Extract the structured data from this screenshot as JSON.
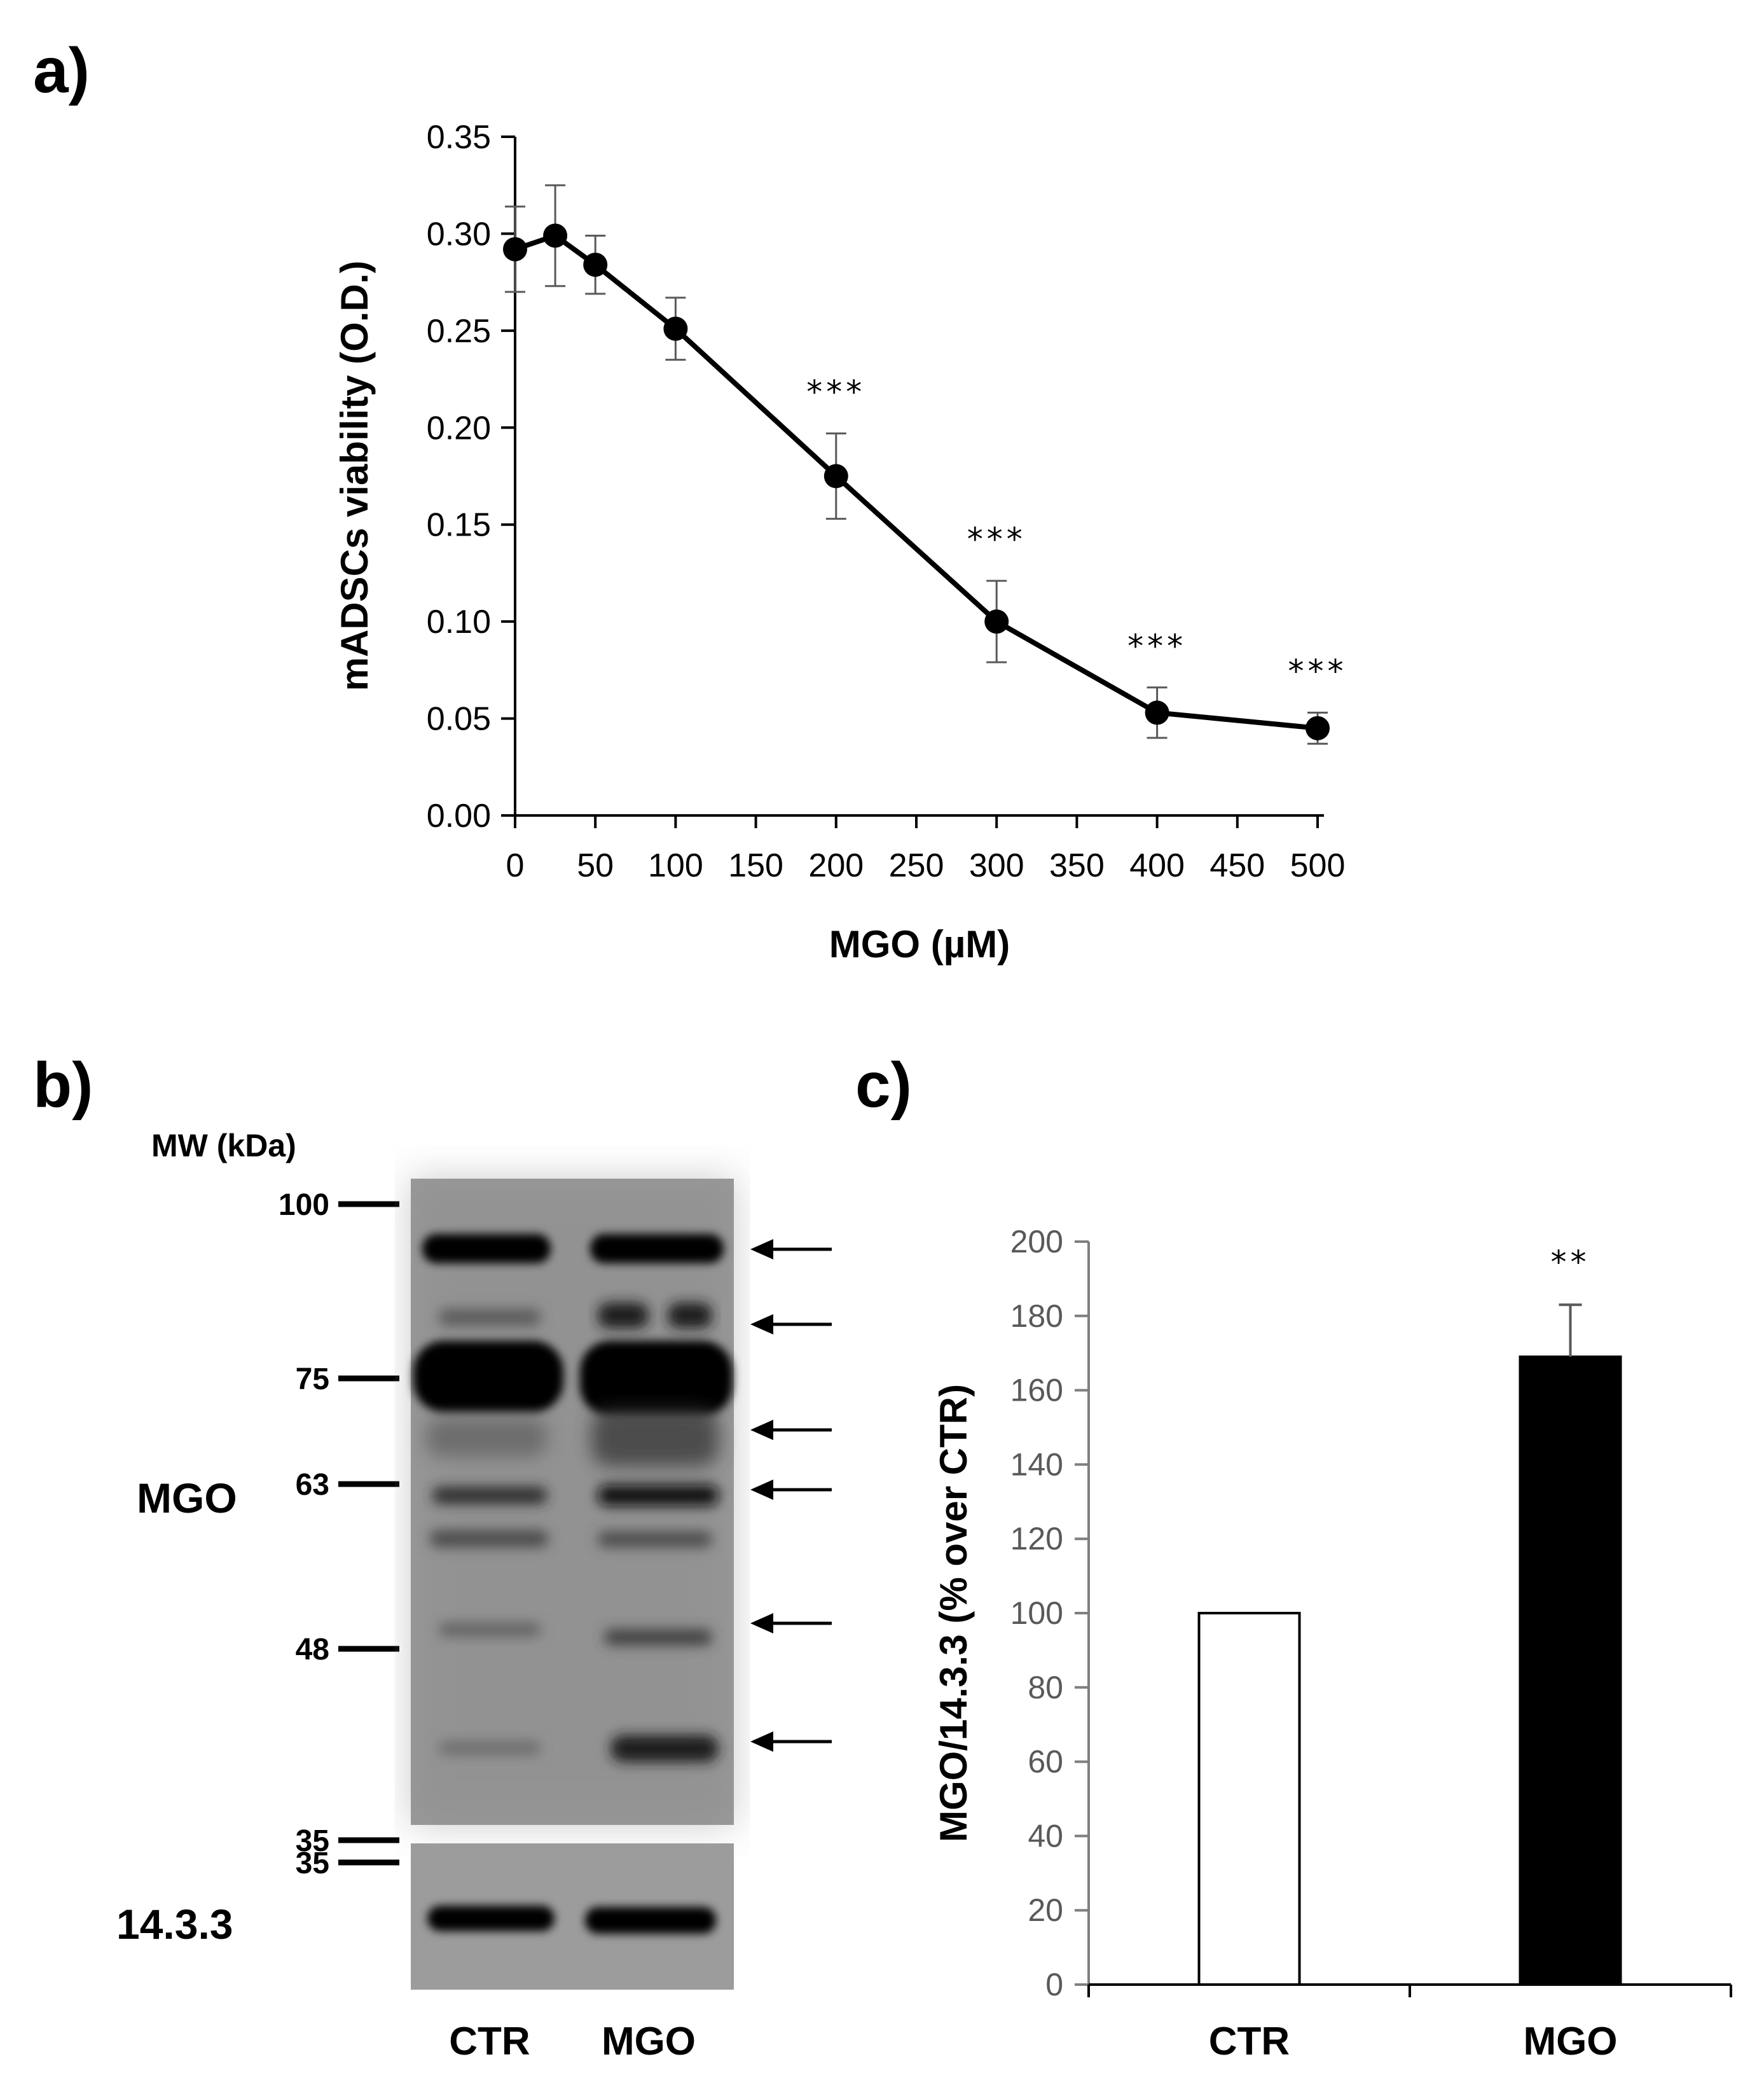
{
  "panel_labels": {
    "a": "a)",
    "b": "b)",
    "c": "c)"
  },
  "colors": {
    "axis": "#000000",
    "grey_axis": "#7f7f7f",
    "errorbar": "#595959",
    "bar_ctr": "#ffffff",
    "bar_mgo": "#000000",
    "blot_bg": "#9a9a9a"
  },
  "chart_data": [
    {
      "id": "a",
      "type": "line",
      "xlabel": "MGO (µM)",
      "ylabel": "mADSCs viability (O.D.)",
      "xlim": [
        0,
        500
      ],
      "ylim": [
        0,
        0.35
      ],
      "xticks": [
        0,
        50,
        100,
        150,
        200,
        250,
        300,
        350,
        400,
        450,
        500
      ],
      "yticks": [
        "0.00",
        "0.05",
        "0.10",
        "0.15",
        "0.20",
        "0.25",
        "0.30",
        "0.35"
      ],
      "x": [
        0,
        25,
        50,
        100,
        200,
        300,
        400,
        500
      ],
      "y": [
        0.292,
        0.299,
        0.284,
        0.251,
        0.175,
        0.1,
        0.053,
        0.045
      ],
      "err": [
        0.022,
        0.026,
        0.015,
        0.016,
        0.022,
        0.021,
        0.013,
        0.008
      ],
      "annotations": [
        {
          "x": 200,
          "text": "***"
        },
        {
          "x": 300,
          "text": "***"
        },
        {
          "x": 400,
          "text": "***"
        },
        {
          "x": 500,
          "text": "***"
        }
      ],
      "grid": false
    },
    {
      "id": "c",
      "type": "bar",
      "categories": [
        "CTR",
        "MGO"
      ],
      "values": [
        100,
        169
      ],
      "err": [
        0,
        14
      ],
      "ylabel": "MGO/14.3.3 (% over CTR)",
      "ylim": [
        0,
        200
      ],
      "yticks": [
        0,
        20,
        40,
        60,
        80,
        100,
        120,
        140,
        160,
        180,
        200
      ],
      "annotations": [
        {
          "category": "MGO",
          "text": "**"
        }
      ],
      "grid": false
    }
  ],
  "blot": {
    "mw_header": "MW (kDa)",
    "markers": [
      {
        "label": "100",
        "kda": 100
      },
      {
        "label": "75",
        "kda": 75
      },
      {
        "label": "63",
        "kda": 63
      },
      {
        "label": "48",
        "kda": 48
      },
      {
        "label": "35",
        "kda": 35
      }
    ],
    "loading_marker": "35",
    "main_label": "MGO",
    "loading_label": "14.3.3",
    "lanes": [
      "CTR",
      "MGO"
    ],
    "arrow_count": 6
  }
}
